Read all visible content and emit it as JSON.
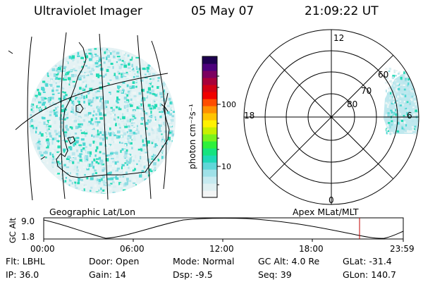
{
  "header": {
    "title": "Ultraviolet Imager",
    "date": "05 May 07",
    "time": "21:09:22 UT"
  },
  "colorbar": {
    "unit_label": "photon cm⁻²s⁻¹",
    "ticks": [
      "100",
      "10"
    ],
    "colors": [
      "#f3f5f5",
      "#dff0f2",
      "#c6eaf0",
      "#9fe1e8",
      "#5fd7d8",
      "#1fd9b7",
      "#16e37f",
      "#2ef03b",
      "#7af21c",
      "#c8f000",
      "#fff200",
      "#ffc400",
      "#ff9000",
      "#ff4d00",
      "#f00000",
      "#d20014",
      "#a8003a",
      "#7c0060",
      "#4c007c",
      "#1e0050"
    ]
  },
  "geo_map": {
    "label": "Geographic Lat/Lon",
    "swatch_colors": [
      "#d9eef1",
      "#b9e6ec",
      "#8fdde3",
      "#4ed7d3",
      "#22dbb4",
      "#e9f4f4",
      "#eef6f6"
    ]
  },
  "polar_plot": {
    "label": "Apex MLat/MLT",
    "mlt_labels": {
      "top": "12",
      "bottom": "0",
      "left": "18",
      "right": "6"
    },
    "lat_labels": [
      "60",
      "70",
      "80"
    ]
  },
  "altitude_plot": {
    "ylabel": "GC Alt",
    "yticks": [
      "9.0",
      "1.8"
    ],
    "xticks": [
      "00:00",
      "06:00",
      "12:00",
      "18:00",
      "23:59"
    ],
    "current_time_color": "#c00000"
  },
  "status": {
    "row1": [
      {
        "label": "Flt:",
        "value": "LBHL"
      },
      {
        "label": "Door:",
        "value": "Open"
      },
      {
        "label": "Mode:",
        "value": "Normal"
      },
      {
        "label": "GC Alt:",
        "value": "4.0 Re"
      },
      {
        "label": "GLat:",
        "value": "-31.4"
      }
    ],
    "row2": [
      {
        "label": "IP:",
        "value": "36.0"
      },
      {
        "label": "Gain:",
        "value": "14"
      },
      {
        "label": "Dsp:",
        "value": "-9.5"
      },
      {
        "label": "Seq:",
        "value": "39"
      },
      {
        "label": "GLon:",
        "value": "140.7"
      }
    ]
  }
}
